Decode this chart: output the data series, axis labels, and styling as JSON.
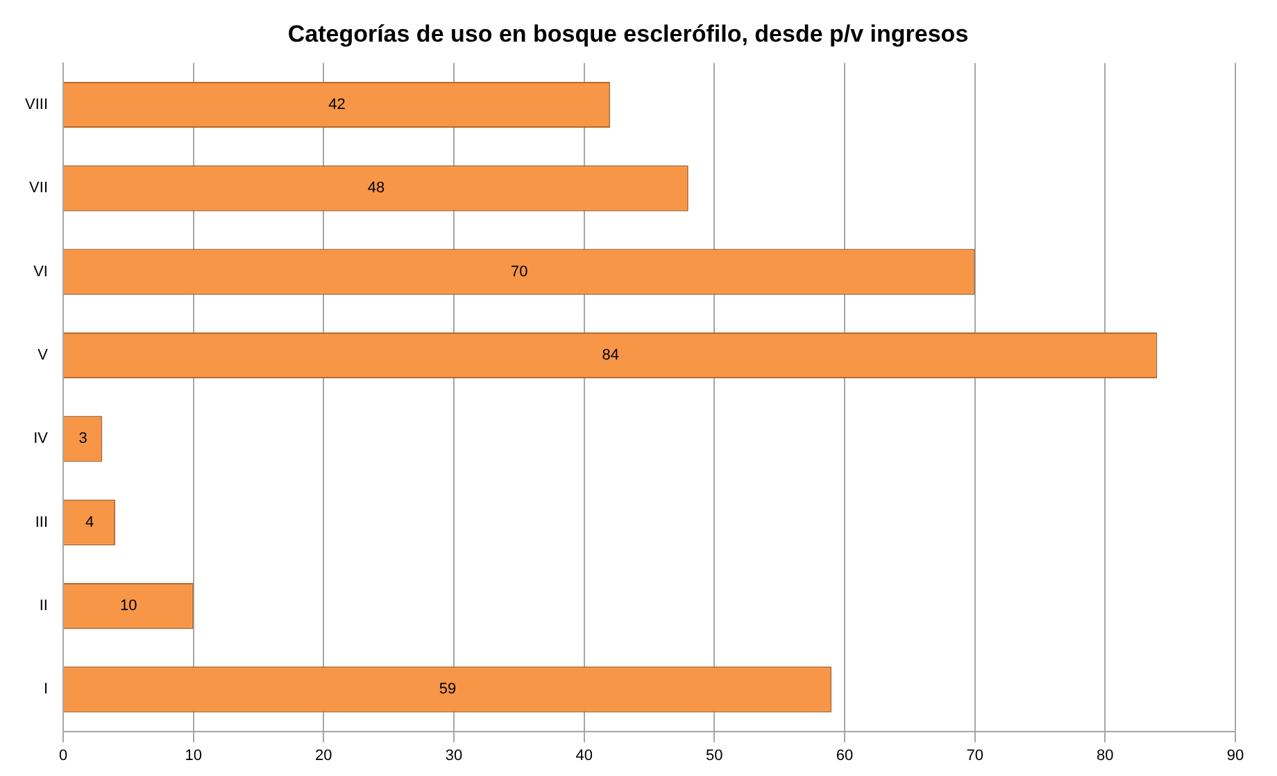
{
  "chart_data": {
    "type": "bar",
    "orientation": "horizontal",
    "title": "Categorías de uso en bosque esclerófilo, desde p/v ingresos",
    "categories": [
      "VIII",
      "VII",
      "VI",
      "V",
      "IV",
      "III",
      "II",
      "I"
    ],
    "values": [
      42,
      48,
      70,
      84,
      3,
      4,
      10,
      59
    ],
    "color": "#f79646",
    "xlim": [
      0,
      90
    ],
    "xticks": [
      0,
      10,
      20,
      30,
      40,
      50,
      60,
      70,
      80,
      90
    ],
    "grid": "x",
    "data_labels": true,
    "legend": false
  }
}
